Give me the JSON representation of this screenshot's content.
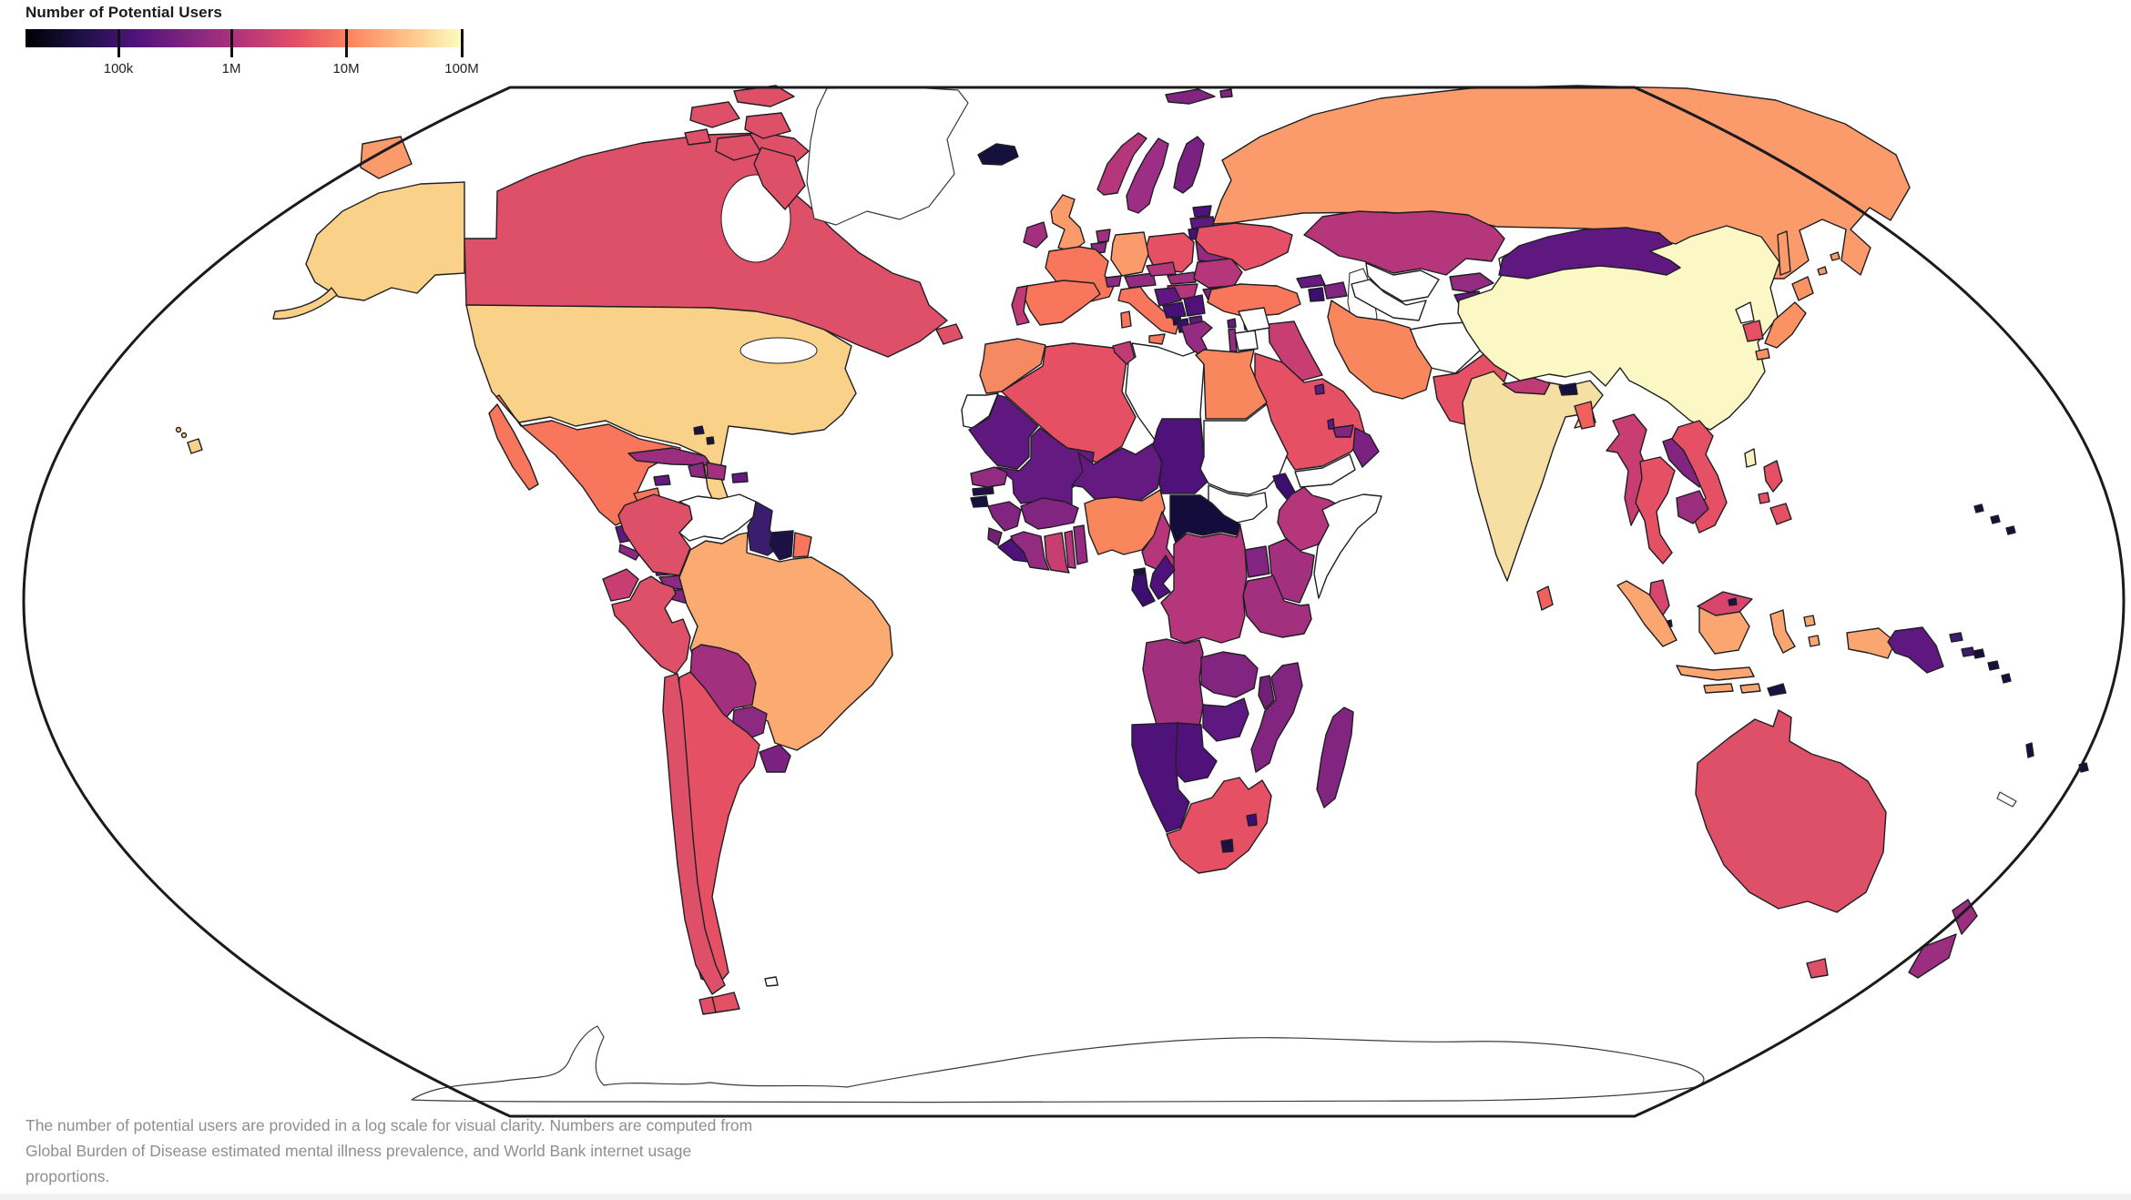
{
  "legend": {
    "title": "Number of Potential Users",
    "ticks": [
      {
        "label": "100k",
        "pos_pct": 21.3
      },
      {
        "label": "1M",
        "pos_pct": 47.2
      },
      {
        "label": "10M",
        "pos_pct": 73.5
      },
      {
        "label": "100M",
        "pos_pct": 100
      }
    ],
    "gradient_stops": [
      "#000004",
      "#1c1044",
      "#4f127b",
      "#812581",
      "#b5367a",
      "#e55064",
      "#fb8861",
      "#fec287",
      "#fcfdbf"
    ]
  },
  "caption": {
    "lines": [
      "The number of potential users are provided in a log scale for visual clarity. Numbers are computed from",
      "Global Burden of Disease estimated mental illness prevalence, and World Bank internet usage",
      "proportions."
    ]
  },
  "chart_data": {
    "type": "choropleth_map",
    "projection": "robinson",
    "title": "Number of Potential Users",
    "scale": "log",
    "legend_ticks": [
      "100k",
      "1M",
      "10M",
      "100M"
    ],
    "colormap": "magma",
    "no_data_color": "#ffffff",
    "countries": {
      "canada": "#de4f68",
      "usa": "#fad189",
      "alaska": "#fad189",
      "hawaii": "#fad189",
      "greenland": null,
      "iceland": "#16103f",
      "chukotka": "#fb9b6b",
      "mexico": "#f8765c",
      "guatemala": "#5f187f",
      "belize": "#1c1044",
      "honduras": "#822581",
      "el-salvador": "#8c2981",
      "nicaragua": "#712073",
      "costa-rica": "#8c2981",
      "panama": "#812581",
      "cuba": "#9c2e7f",
      "jamaica": "#641a80",
      "haiti": "#8c2981",
      "dominican-republic": "#a3307e",
      "puerto-rico": "#641a80",
      "bahamas": "#1c1044",
      "trinidad": "#16103f",
      "colombia": "#de4f68",
      "venezuela": null,
      "guyana": "#3b1d6e",
      "suriname": "#1c1044",
      "french-guiana": "#f8765c",
      "ecuador": "#c83e73",
      "peru": "#de4f68",
      "brazil": "#fbaa72",
      "bolivia": "#a3307e",
      "paraguay": "#8c2981",
      "uruguay": "#7b2182",
      "chile": "#de4f68",
      "argentina": "#e55064",
      "falkland": null,
      "uk": "#fb9b6b",
      "ireland": "#a3307e",
      "norway": "#b5367a",
      "sweden": "#9c2e86",
      "finland": "#7b2182",
      "denmark": "#932b80",
      "estonia": "#4f127b",
      "latvia": "#5f187f",
      "lithuania": "#461078",
      "belarus": "#932b80",
      "poland": "#e55064",
      "germany": "#fb9b6b",
      "netherlands": "#a3307e",
      "belgium": "#8c2981",
      "france": "#f8765c",
      "switzerland": "#8c2981",
      "austria": "#932b80",
      "czechia": "#b5367a",
      "slovakia": "#a3307e",
      "hungary": "#b5367a",
      "spain": "#f8765c",
      "portugal": "#c03a76",
      "italy": "#f8765c",
      "croatia": "#5f187f",
      "bosnia": "#461078",
      "serbia": "#4f127b",
      "albania": "#3b0f70",
      "north-macedonia": "#5f187f",
      "montenegro": "#2a0c57",
      "greece": "#932b80",
      "romania": "#b5367a",
      "bulgaria": "#822581",
      "moldova": "#641a80",
      "ukraine": "#e55064",
      "russia": "#fb9b6b",
      "svalbard": "#822581",
      "turkey": "#f8765c",
      "cyprus": "#932b80",
      "georgia": "#641a80",
      "armenia": "#3b0f70",
      "azerbaijan": "#822581",
      "kazakhstan": "#b5367a",
      "uzbekistan": null,
      "turkmenistan": null,
      "kyrgyzstan": "#932b80",
      "tajikistan": "#641a80",
      "afghanistan": null,
      "pakistan": "#e55064",
      "iran": "#f8875e",
      "iraq": "#c83e73",
      "syria": null,
      "jordan": null,
      "israel": "#932b80",
      "lebanon": "#641a80",
      "saudi-arabia": "#e55064",
      "yemen": null,
      "oman": "#7b2182",
      "uae": "#822581",
      "qatar": "#5f187f",
      "kuwait": "#641a80",
      "egypt": "#f8875e",
      "libya": null,
      "tunisia": "#c03a76",
      "algeria": "#e55064",
      "morocco": "#f58a62",
      "western-sahara": null,
      "mauritania": "#5f187f",
      "senegal": "#932b80",
      "gambia": "#1c1044",
      "guinea-bissau": "#16103f",
      "guinea": "#822581",
      "sierra-leone": "#712073",
      "liberia": "#4f127b",
      "ivory-coast": "#932b80",
      "ghana": "#c83e73",
      "togo": "#b5367a",
      "benin": "#932b80",
      "burkina-faso": "#822581",
      "mali": "#641a80",
      "niger": "#641a80",
      "nigeria": "#f8875e",
      "chad": "#4f127b",
      "cameroon": "#b5367a",
      "central-african-republic": "#140c3a",
      "sudan": null,
      "south-sudan": null,
      "eritrea": "#3b0f70",
      "djibouti": "#1c1044",
      "ethiopia": "#b5367a",
      "somalia": null,
      "kenya": "#a3307e",
      "uganda": "#822581",
      "rwanda": "#16103f",
      "burundi": "#1c1044",
      "tanzania": "#a3307e",
      "drc": "#b5367a",
      "congo": "#4f127b",
      "gabon": "#3b0f70",
      "equatorial-guinea": "#1c1044",
      "angola": "#a3307e",
      "zambia": "#822581",
      "malawi": "#712073",
      "mozambique": "#822581",
      "zimbabwe": "#5f187f",
      "botswana": "#4f127b",
      "namibia": "#4f127b",
      "south-africa": "#e55064",
      "lesotho": "#1c1044",
      "eswatini": "#3b0f70",
      "madagascar": "#822581",
      "mongolia": "#5f187f",
      "china": "#fbf8c5",
      "north-korea": null,
      "south-korea": "#e55064",
      "japan": "#fb9261",
      "taiwan": "#fbf3be",
      "india": "#f5dfa3",
      "nepal": "#c03a76",
      "bhutan": "#16103f",
      "bangladesh": "#f1605d",
      "sri-lanka": "#f1605d",
      "myanmar": "#c83e73",
      "thailand": "#e55064",
      "laos": "#822581",
      "cambodia": "#9c2e7f",
      "vietnam": "#e55064",
      "malaysia": "#d8456c",
      "singapore": "#16103f",
      "brunei": "#1c1044",
      "indonesia": "#fba671",
      "timor-leste": "#1c1044",
      "philippines": "#e55064",
      "papua-new-guinea": "#5f187f",
      "png-islands": "#3b1d6e",
      "solomon-islands": "#16103f",
      "vanuatu": "#16103f",
      "fiji": "#16103f",
      "new-caledonia": null,
      "micronesia-dots": "#16103f",
      "australia": "#de4f68",
      "new-zealand": "#9c2e7f"
    }
  }
}
